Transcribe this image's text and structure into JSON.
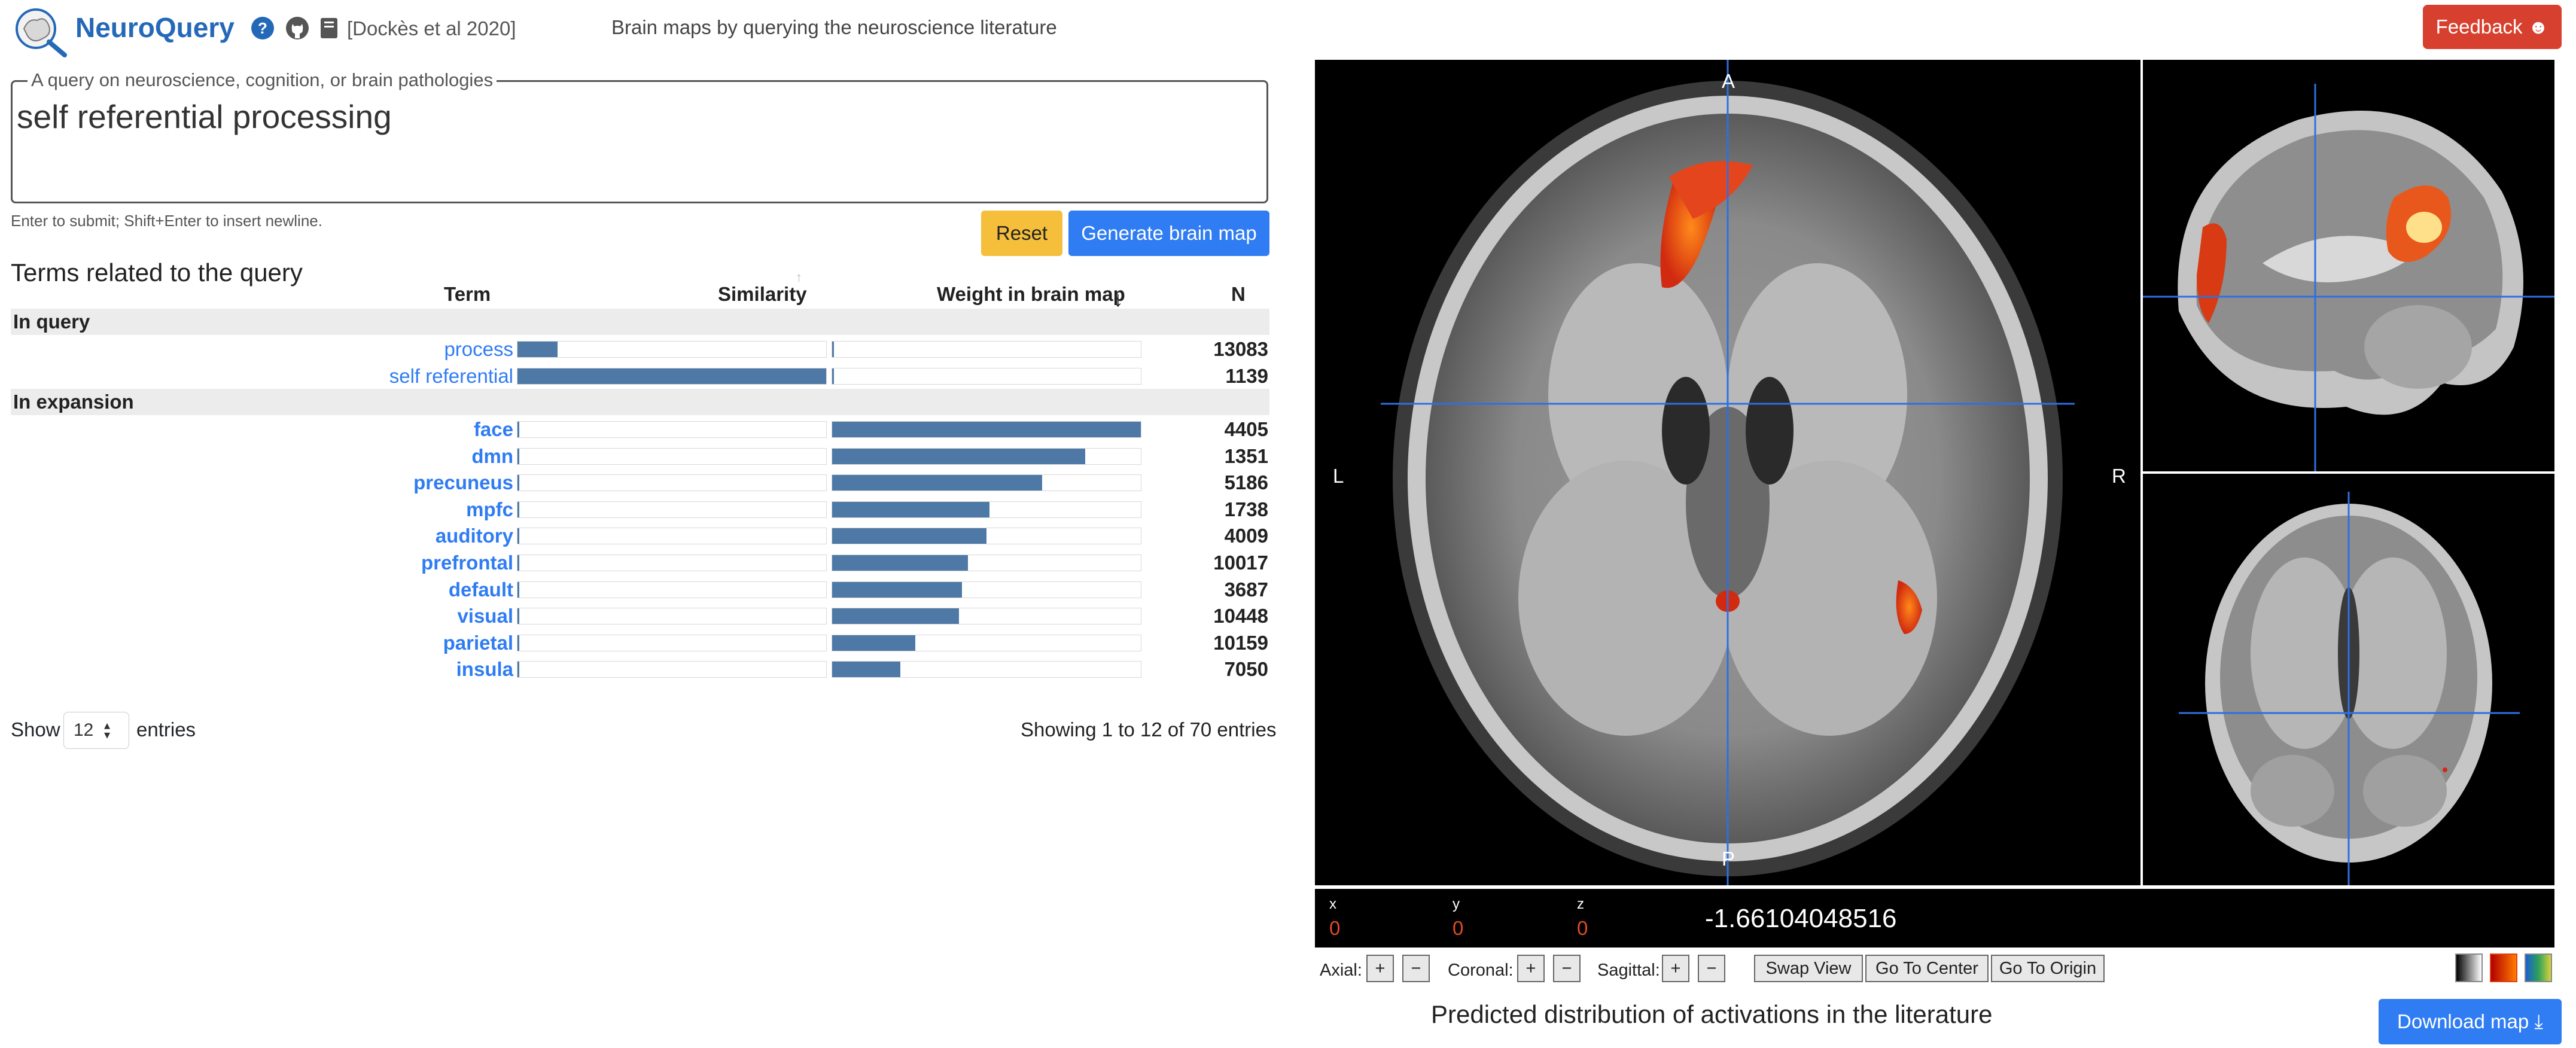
{
  "header": {
    "brand": "NeuroQuery",
    "citation": "[Dockès et al 2020]",
    "tagline": "Brain maps by querying the neuroscience literature",
    "feedback_label": "Feedback ☻"
  },
  "query": {
    "legend": "A query on neuroscience, cognition, or brain pathologies",
    "value": "self referential processing",
    "hint": "Enter to submit; Shift+Enter to insert newline.",
    "reset_label": "Reset",
    "generate_label": "Generate brain map"
  },
  "terms": {
    "title": "Terms related to the query",
    "columns": {
      "term": "Term",
      "similarity": "Similarity",
      "weight": "Weight in brain map",
      "n": "N"
    },
    "sections": [
      {
        "label": "In query"
      },
      {
        "label": "In expansion"
      }
    ],
    "in_query": [
      {
        "term": "process",
        "similarity": 0.13,
        "weight": 0.0,
        "n": "13083"
      },
      {
        "term": "self referential",
        "similarity": 1.0,
        "weight": 0.0,
        "n": "1139"
      }
    ],
    "in_expansion": [
      {
        "term": "face",
        "similarity": 0.0,
        "weight": 1.0,
        "n": "4405"
      },
      {
        "term": "dmn",
        "similarity": 0.0,
        "weight": 0.82,
        "n": "1351"
      },
      {
        "term": "precuneus",
        "similarity": 0.0,
        "weight": 0.68,
        "n": "5186"
      },
      {
        "term": "mpfc",
        "similarity": 0.0,
        "weight": 0.51,
        "n": "1738"
      },
      {
        "term": "auditory",
        "similarity": 0.0,
        "weight": 0.5,
        "n": "4009"
      },
      {
        "term": "prefrontal",
        "similarity": 0.0,
        "weight": 0.44,
        "n": "10017"
      },
      {
        "term": "default",
        "similarity": 0.0,
        "weight": 0.42,
        "n": "3687"
      },
      {
        "term": "visual",
        "similarity": 0.0,
        "weight": 0.41,
        "n": "10448"
      },
      {
        "term": "parietal",
        "similarity": 0.0,
        "weight": 0.27,
        "n": "10159"
      },
      {
        "term": "insula",
        "similarity": 0.0,
        "weight": 0.22,
        "n": "7050"
      }
    ],
    "show_label": "Show",
    "entries_value": "12",
    "entries_label": "entries",
    "showing_info": "Showing 1 to 12 of 70 entries"
  },
  "viewer": {
    "orientation": {
      "anterior": "A",
      "posterior": "P",
      "left": "L",
      "right": "R"
    },
    "coords": {
      "x_label": "x",
      "y_label": "y",
      "z_label": "z",
      "x": "0",
      "y": "0",
      "z": "0"
    },
    "intensity": "-1.66104048516",
    "controls": {
      "axial_label": "Axial:",
      "coronal_label": "Coronal:",
      "sagittal_label": "Sagittal:",
      "plus": "+",
      "minus": "−",
      "swap_view": "Swap View",
      "go_to_center": "Go To Center",
      "go_to_origin": "Go To Origin"
    },
    "colormaps": [
      "#888888",
      "#e0401a",
      "#2c8f4a"
    ]
  },
  "caption": "Predicted distribution of activations in the literature",
  "download_label": "Download map ⤓"
}
